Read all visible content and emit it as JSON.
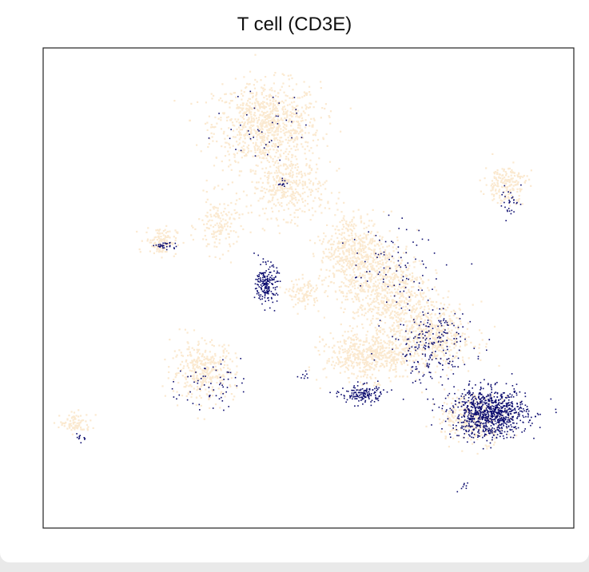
{
  "chart_data": {
    "type": "scatter",
    "title": "T cell (CD3E)",
    "xlabel": "",
    "ylabel": "",
    "grid": false,
    "legend": "none",
    "colors": {
      "background_points": "#fbe9d0",
      "highlight_points": "#0b0b6e",
      "frame": "#222222"
    },
    "xlim": [
      0,
      100
    ],
    "ylim": [
      0,
      100
    ],
    "series": [
      {
        "role": "background",
        "clusters": [
          {
            "cx": 42,
            "cy": 84,
            "rx": 10,
            "ry": 9,
            "n": 900
          },
          {
            "cx": 46,
            "cy": 71,
            "rx": 7,
            "ry": 6,
            "n": 350
          },
          {
            "cx": 33,
            "cy": 63,
            "rx": 4,
            "ry": 6,
            "n": 150
          },
          {
            "cx": 22,
            "cy": 60,
            "rx": 3,
            "ry": 3,
            "n": 120
          },
          {
            "cx": 58,
            "cy": 58,
            "rx": 6,
            "ry": 8,
            "n": 450
          },
          {
            "cx": 64,
            "cy": 50,
            "rx": 8,
            "ry": 9,
            "n": 650
          },
          {
            "cx": 73,
            "cy": 40,
            "rx": 8,
            "ry": 7,
            "n": 500
          },
          {
            "cx": 61,
            "cy": 36,
            "rx": 8,
            "ry": 5,
            "n": 500
          },
          {
            "cx": 81,
            "cy": 23,
            "rx": 7,
            "ry": 5,
            "n": 300
          },
          {
            "cx": 87,
            "cy": 72,
            "rx": 4,
            "ry": 4,
            "n": 180
          },
          {
            "cx": 30,
            "cy": 33,
            "rx": 6,
            "ry": 6,
            "n": 350
          },
          {
            "cx": 6,
            "cy": 22,
            "rx": 3,
            "ry": 2,
            "n": 80
          },
          {
            "cx": 49,
            "cy": 49,
            "rx": 3,
            "ry": 3,
            "n": 100
          }
        ]
      },
      {
        "role": "highlight",
        "clusters": [
          {
            "cx": 84,
            "cy": 24,
            "rx": 7,
            "ry": 5,
            "n": 900
          },
          {
            "cx": 42,
            "cy": 51,
            "rx": 2,
            "ry": 4,
            "n": 200
          },
          {
            "cx": 60,
            "cy": 28,
            "rx": 4,
            "ry": 2,
            "n": 150
          },
          {
            "cx": 73,
            "cy": 38,
            "rx": 8,
            "ry": 8,
            "n": 220
          },
          {
            "cx": 66,
            "cy": 55,
            "rx": 8,
            "ry": 8,
            "n": 80
          },
          {
            "cx": 31,
            "cy": 30,
            "rx": 6,
            "ry": 5,
            "n": 60
          },
          {
            "cx": 23,
            "cy": 59,
            "rx": 2,
            "ry": 1,
            "n": 30
          },
          {
            "cx": 45,
            "cy": 72,
            "rx": 1,
            "ry": 1,
            "n": 12
          },
          {
            "cx": 88,
            "cy": 68,
            "rx": 2,
            "ry": 3,
            "n": 30
          },
          {
            "cx": 7,
            "cy": 19,
            "rx": 1,
            "ry": 1,
            "n": 10
          },
          {
            "cx": 79,
            "cy": 9,
            "rx": 1,
            "ry": 2,
            "n": 8
          },
          {
            "cx": 49,
            "cy": 32,
            "rx": 1,
            "ry": 1,
            "n": 8
          },
          {
            "cx": 42,
            "cy": 84,
            "rx": 8,
            "ry": 8,
            "n": 40
          }
        ]
      }
    ]
  }
}
